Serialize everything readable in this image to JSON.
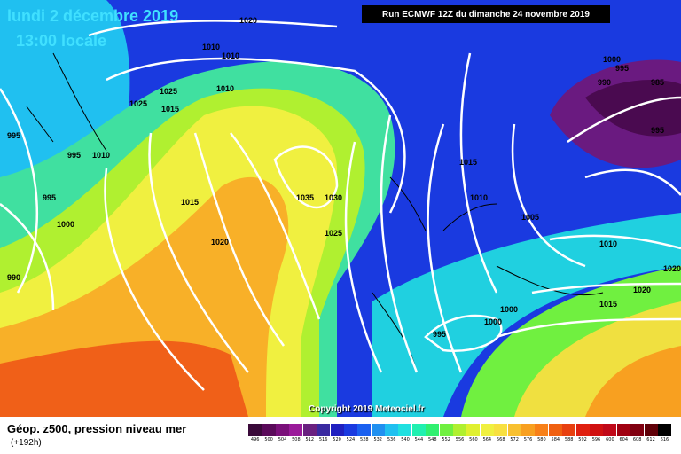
{
  "header": {
    "date": "lundi 2 décembre 2019",
    "time": "13:00 locale",
    "run": "Run ECMWF 12Z du dimanche 24 novembre 2019"
  },
  "copyright": "Copyright 2019 Meteociel.fr",
  "footer": {
    "title": "Géop. z500, pression niveau mer",
    "subtitle": "(+192h)"
  },
  "scale": {
    "labels": [
      "496",
      "500",
      "504",
      "508",
      "512",
      "516",
      "520",
      "524",
      "528",
      "532",
      "536",
      "540",
      "544",
      "548",
      "552",
      "556",
      "560",
      "564",
      "568",
      "572",
      "576",
      "580",
      "584",
      "588",
      "592",
      "596",
      "600",
      "604",
      "608",
      "612",
      "616"
    ],
    "colors": [
      "#3a0a3a",
      "#5a0a5a",
      "#7a107a",
      "#9a1a9a",
      "#6a2080",
      "#3a2aa0",
      "#2020c0",
      "#1a3ae0",
      "#1a60f0",
      "#2090f0",
      "#20c0f0",
      "#20e0e0",
      "#20f0b0",
      "#30f070",
      "#70f040",
      "#b0f030",
      "#e0f030",
      "#f0f040",
      "#f8e040",
      "#f8c030",
      "#f8a020",
      "#f88018",
      "#f06010",
      "#e84010",
      "#e02010",
      "#d01010",
      "#c00818",
      "#a00010",
      "#800010",
      "#600008",
      "#000000"
    ]
  },
  "isobars": [
    "1020",
    "1010",
    "1010",
    "1010",
    "1025",
    "1025",
    "1015",
    "995",
    "995",
    "1010",
    "995",
    "1000",
    "1015",
    "1020",
    "1035",
    "1030",
    "1025",
    "1015",
    "1010",
    "1005",
    "1000",
    "995",
    "985",
    "990",
    "995",
    "990",
    "1010",
    "1020",
    "1015",
    "1000",
    "1000",
    "995",
    "1020"
  ],
  "colors": {
    "background_blue": "#1a40e0",
    "deep_purple": "#500050",
    "orange_red": "#f05010"
  }
}
